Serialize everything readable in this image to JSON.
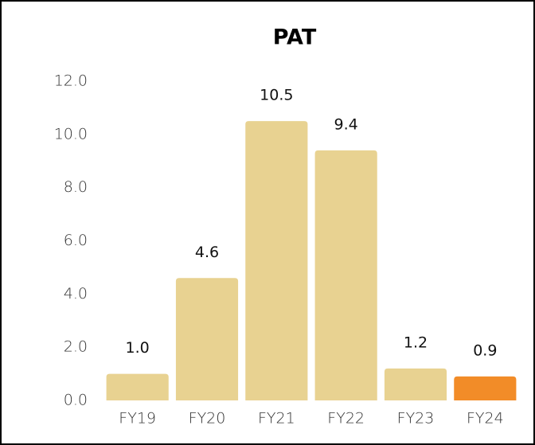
{
  "chart_data": {
    "type": "bar",
    "title": "PAT",
    "categories": [
      "FY19",
      "FY20",
      "FY21",
      "FY22",
      "FY23",
      "FY24"
    ],
    "values": [
      1.0,
      4.6,
      10.5,
      9.4,
      1.2,
      0.9
    ],
    "value_labels": [
      "1.0",
      "4.6",
      "10.5",
      "9.4",
      "1.2",
      "0.9"
    ],
    "colors": [
      "#e8d291",
      "#e8d291",
      "#e8d291",
      "#e8d291",
      "#e8d291",
      "#f28c28"
    ],
    "ylim": [
      0,
      12
    ],
    "yticks": [
      {
        "value": 0,
        "label": "0.0"
      },
      {
        "value": 2,
        "label": "2.0"
      },
      {
        "value": 4,
        "label": "4.0"
      },
      {
        "value": 6,
        "label": "6.0"
      },
      {
        "value": 8,
        "label": "8.0"
      },
      {
        "value": 10,
        "label": "10.0"
      },
      {
        "value": 12,
        "label": "12.0"
      }
    ],
    "grid": false
  }
}
